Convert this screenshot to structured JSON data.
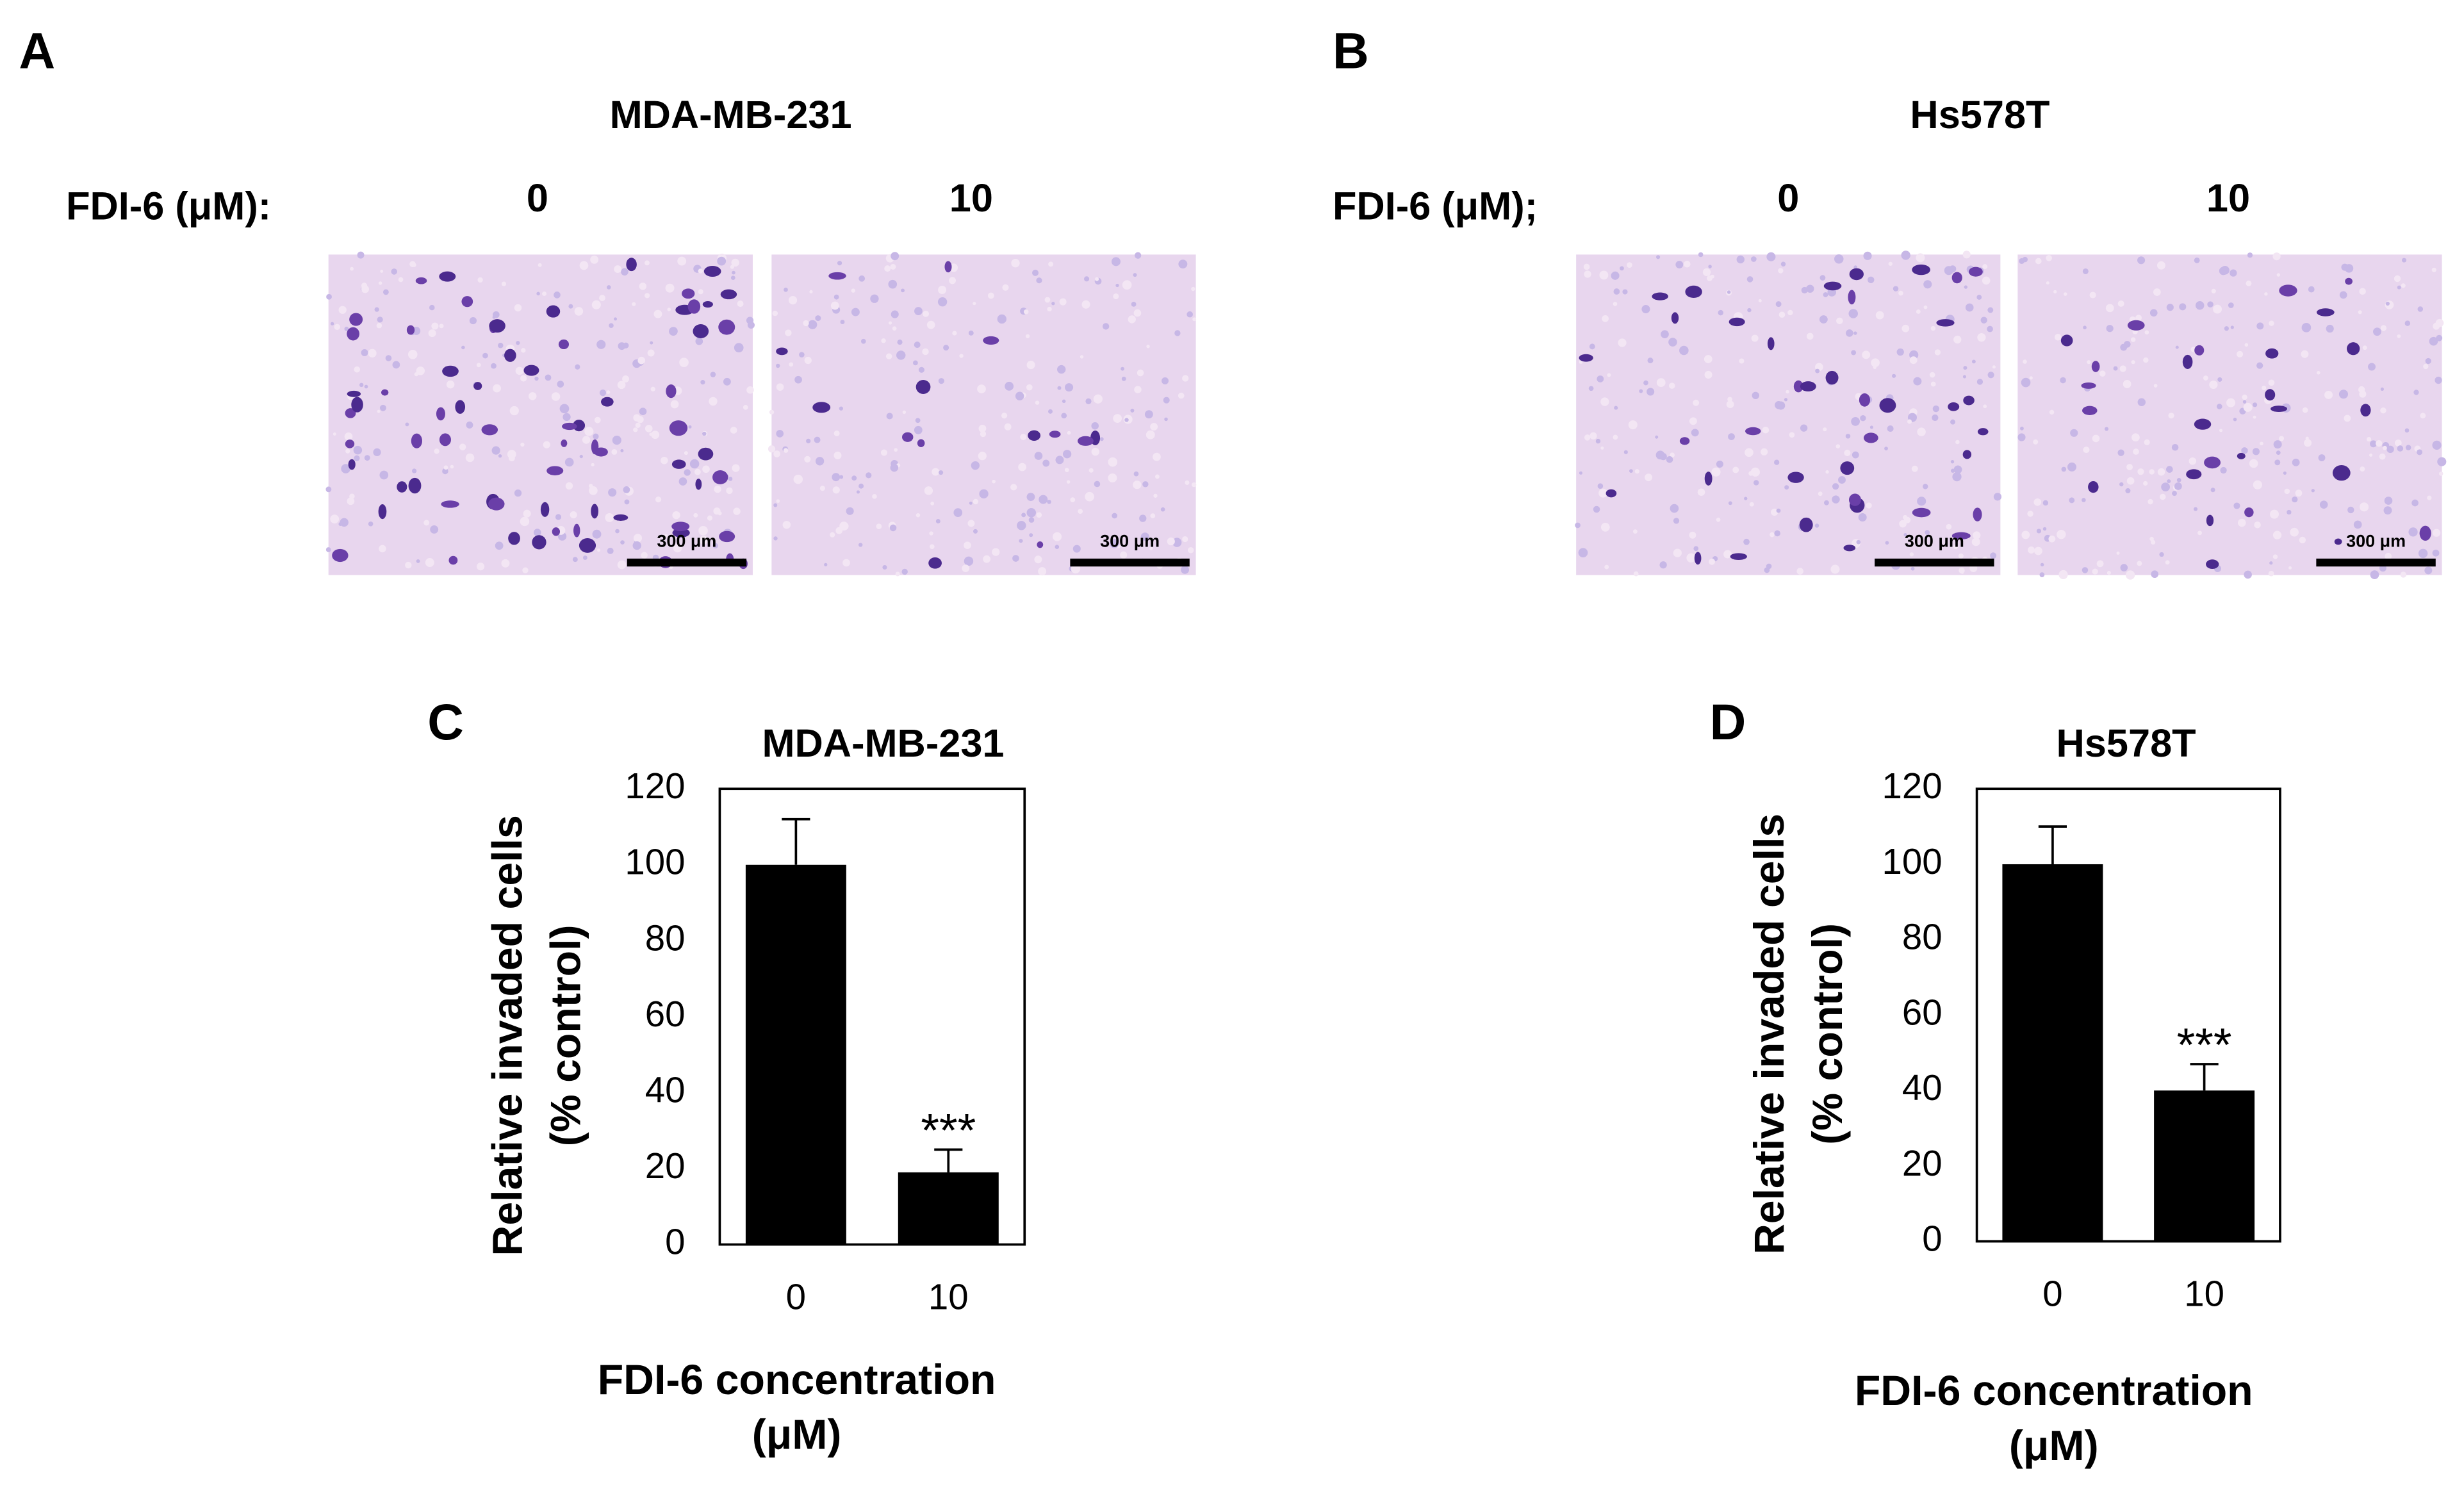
{
  "panels": [
    {
      "letter": "A",
      "title": "MDA-MB-231",
      "dose_label": "FDI-6 (μM):",
      "doses": [
        "0",
        "10"
      ],
      "scale_bar": "300 μm"
    },
    {
      "letter": "B",
      "title": "Hs578T",
      "dose_label": "FDI-6 (μM);",
      "doses": [
        "0",
        "10"
      ],
      "scale_bar": "300 μm"
    }
  ],
  "chart_data": [
    {
      "type": "bar",
      "panel": "C",
      "title": "MDA-MB-231",
      "categories": [
        "0",
        "10"
      ],
      "values": [
        100,
        19
      ],
      "errors": [
        12,
        6
      ],
      "color": "#000000",
      "significance": "***",
      "ylabel": [
        "Relative invaded cells",
        "(% control)"
      ],
      "xlabel": [
        "FDI-6 concentration",
        "(μM)"
      ],
      "ylim": [
        0,
        120
      ],
      "yticks": [
        0,
        20,
        40,
        60,
        80,
        100,
        120
      ],
      "grid": false
    },
    {
      "type": "bar",
      "panel": "D",
      "title": "Hs578T",
      "categories": [
        "0",
        "10"
      ],
      "values": [
        100,
        40
      ],
      "errors": [
        10,
        7
      ],
      "color": "#000000",
      "significance": "***",
      "ylabel": [
        "Relative invaded cells",
        "(% control)"
      ],
      "xlabel": [
        "FDI-6 concentration",
        "(μM)"
      ],
      "ylim": [
        0,
        120
      ],
      "yticks": [
        0,
        20,
        40,
        60,
        80,
        100,
        120
      ],
      "grid": false
    }
  ]
}
